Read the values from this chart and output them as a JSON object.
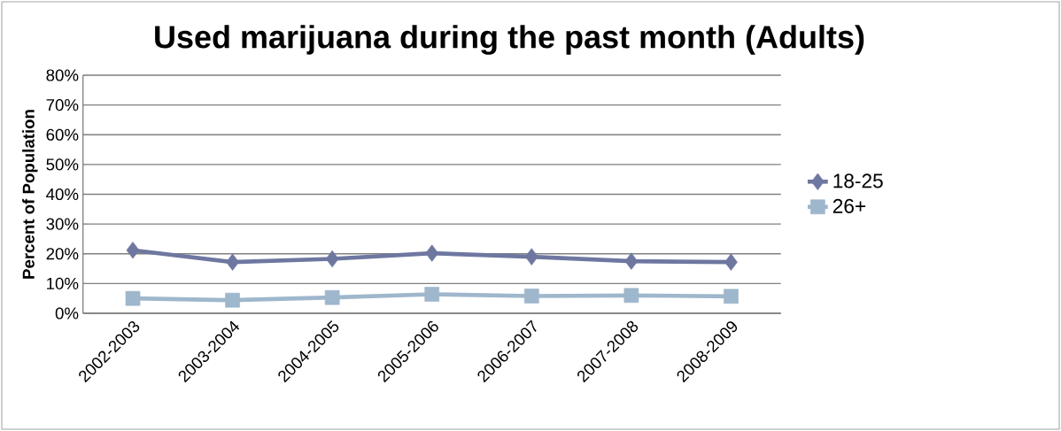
{
  "chart_data": {
    "type": "line",
    "title": "Used marijuana during the past month (Adults)",
    "ylabel": "Percent of Population",
    "categories": [
      "2002-2003",
      "2003-2004",
      "2004-2005",
      "2005-2006",
      "2006-2007",
      "2007-2008",
      "2008-2009"
    ],
    "series": [
      {
        "name": "18-25",
        "color": "#6e77a0",
        "marker": "diamond",
        "values": [
          21.2,
          17.2,
          18.3,
          20.2,
          19.0,
          17.5,
          17.2
        ]
      },
      {
        "name": "26+",
        "color": "#9fb7cc",
        "marker": "square",
        "values": [
          5.0,
          4.4,
          5.3,
          6.4,
          5.8,
          6.0,
          5.7
        ]
      }
    ],
    "ylim": [
      0,
      80
    ],
    "yticks": [
      {
        "value": 0,
        "label": "0%"
      },
      {
        "value": 10,
        "label": "10%"
      },
      {
        "value": 20,
        "label": "20%"
      },
      {
        "value": 30,
        "label": "30%"
      },
      {
        "value": 40,
        "label": "40%"
      },
      {
        "value": 50,
        "label": "50%"
      },
      {
        "value": 60,
        "label": "60%"
      },
      {
        "value": 70,
        "label": "70%"
      },
      {
        "value": 80,
        "label": "80%"
      }
    ],
    "grid": "y",
    "legend": "right"
  }
}
